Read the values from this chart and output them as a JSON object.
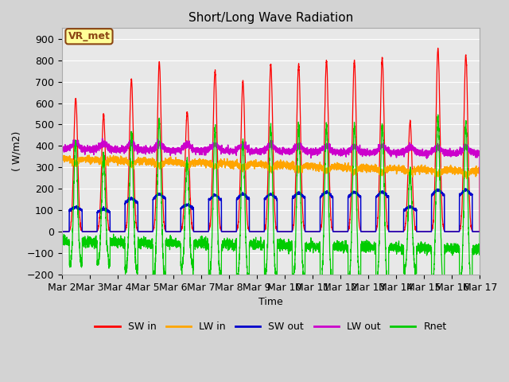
{
  "title": "Short/Long Wave Radiation",
  "xlabel": "Time",
  "ylabel": "( W/m2)",
  "ylim": [
    -200,
    950
  ],
  "yticks": [
    -200,
    -100,
    0,
    100,
    200,
    300,
    400,
    500,
    600,
    700,
    800,
    900
  ],
  "background_color": "#d3d3d3",
  "plot_bg_color": "#e8e8e8",
  "grid_color": "#ffffff",
  "annotation_text": "VR_met",
  "annotation_bg": "#ffff99",
  "annotation_border": "#8b4513",
  "series": [
    "SW in",
    "LW in",
    "SW out",
    "LW out",
    "Rnet"
  ],
  "colors": {
    "SW in": "#ff0000",
    "LW in": "#ffa500",
    "SW out": "#0000cc",
    "LW out": "#cc00cc",
    "Rnet": "#00cc00"
  },
  "n_days": 15,
  "start_day": 2,
  "sw_in_peaks": [
    625,
    545,
    710,
    790,
    560,
    750,
    705,
    780,
    780,
    800,
    800,
    810,
    515,
    855,
    825
  ],
  "sw_out_flat": [
    115,
    105,
    155,
    175,
    125,
    170,
    175,
    175,
    180,
    185,
    185,
    185,
    115,
    195,
    195
  ],
  "figsize": [
    6.4,
    4.8
  ],
  "dpi": 100
}
